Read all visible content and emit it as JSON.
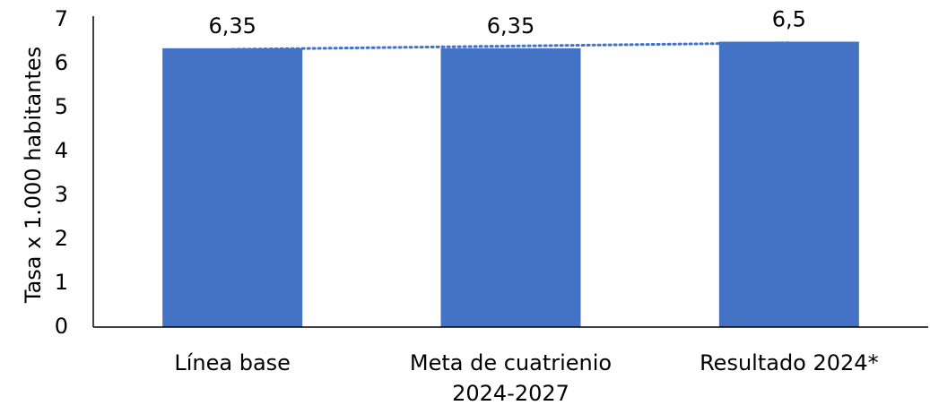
{
  "chart_data": {
    "type": "bar",
    "y_label": "Tasa x 1.000 habitantes",
    "categories": [
      "Línea base",
      "Meta de cuatrienio 2024-2027",
      "Resultado 2024*"
    ],
    "values": [
      6.35,
      6.35,
      6.5
    ],
    "value_labels": [
      "6,35",
      "6,35",
      "6,5"
    ],
    "color": "#4472c4",
    "trendline": true,
    "ylim": [
      0,
      7
    ],
    "yticks": [
      0,
      1,
      2,
      3,
      4,
      5,
      6,
      7
    ],
    "grid": false
  }
}
